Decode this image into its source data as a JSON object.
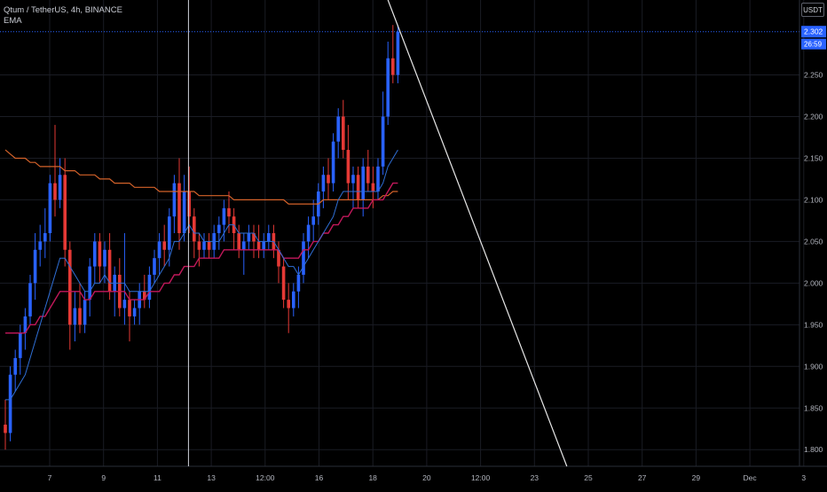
{
  "legend": {
    "symbol_line": "Qtum / TetherUS, 4h, BINANCE",
    "indicator": "EMA"
  },
  "currency_label": "USDT",
  "price_scale": {
    "ticks": [
      "2.250",
      "2.200",
      "2.150",
      "2.100",
      "2.050",
      "2.000",
      "1.950",
      "1.900",
      "1.850",
      "1.800"
    ],
    "current_price": "2.302",
    "countdown": "26:59"
  },
  "time_axis": {
    "labels": [
      "7",
      "9",
      "11",
      "13",
      "12:00",
      "16",
      "18",
      "20",
      "12:00",
      "23",
      "25",
      "27",
      "29",
      "Dec",
      "3"
    ]
  },
  "colors": {
    "background": "#000000",
    "grid": "#1a1c24",
    "up": "#2962ff",
    "down": "#e53935",
    "ema_fast": "#2f6fd6",
    "ema_mid": "#c2185b",
    "ema_slow": "#d4622a",
    "price_badge": "#2962ff",
    "drawn_line": "#e8e8e8"
  },
  "chart_data": {
    "type": "candlestick",
    "ylim": [
      1.78,
      2.34
    ],
    "y_ticks": [
      1.8,
      1.85,
      1.9,
      1.95,
      2.0,
      2.05,
      2.1,
      2.15,
      2.2,
      2.25
    ],
    "candles": [
      [
        1.83,
        1.86,
        1.8,
        1.82
      ],
      [
        1.82,
        1.9,
        1.81,
        1.89
      ],
      [
        1.89,
        1.92,
        1.87,
        1.91
      ],
      [
        1.91,
        1.95,
        1.89,
        1.94
      ],
      [
        1.94,
        1.97,
        1.92,
        1.96
      ],
      [
        1.96,
        2.01,
        1.95,
        2.0
      ],
      [
        2.0,
        2.06,
        1.98,
        2.04
      ],
      [
        2.04,
        2.07,
        2.02,
        2.05
      ],
      [
        2.05,
        2.09,
        2.03,
        2.06
      ],
      [
        2.06,
        2.13,
        2.05,
        2.12
      ],
      [
        2.12,
        2.19,
        2.08,
        2.1
      ],
      [
        2.1,
        2.15,
        2.09,
        2.13
      ],
      [
        2.13,
        2.15,
        2.02,
        2.04
      ],
      [
        2.04,
        2.05,
        1.92,
        1.95
      ],
      [
        1.95,
        1.99,
        1.93,
        1.97
      ],
      [
        1.97,
        2.0,
        1.94,
        1.95
      ],
      [
        1.95,
        1.99,
        1.94,
        1.98
      ],
      [
        1.98,
        2.03,
        1.96,
        2.02
      ],
      [
        2.02,
        2.06,
        2.0,
        2.05
      ],
      [
        2.05,
        2.06,
        2.0,
        2.02
      ],
      [
        2.02,
        2.05,
        2.0,
        2.04
      ],
      [
        2.04,
        2.06,
        1.98,
        1.99
      ],
      [
        1.99,
        2.02,
        1.96,
        2.01
      ],
      [
        2.01,
        2.03,
        1.96,
        1.97
      ],
      [
        1.97,
        2.06,
        1.95,
        1.98
      ],
      [
        1.98,
        1.99,
        1.93,
        1.96
      ],
      [
        1.96,
        1.98,
        1.95,
        1.97
      ],
      [
        1.97,
        2.0,
        1.95,
        1.99
      ],
      [
        1.99,
        2.01,
        1.97,
        1.98
      ],
      [
        1.98,
        2.02,
        1.97,
        2.01
      ],
      [
        2.01,
        2.04,
        2.0,
        2.03
      ],
      [
        2.03,
        2.06,
        2.01,
        2.05
      ],
      [
        2.05,
        2.07,
        2.02,
        2.04
      ],
      [
        2.04,
        2.09,
        2.02,
        2.08
      ],
      [
        2.08,
        2.13,
        2.06,
        2.12
      ],
      [
        2.12,
        2.15,
        2.04,
        2.06
      ],
      [
        2.06,
        2.13,
        2.05,
        2.11
      ],
      [
        2.11,
        2.14,
        2.06,
        2.08
      ],
      [
        2.08,
        2.09,
        2.03,
        2.05
      ],
      [
        2.05,
        2.06,
        2.02,
        2.04
      ],
      [
        2.04,
        2.06,
        2.03,
        2.05
      ],
      [
        2.05,
        2.06,
        2.03,
        2.04
      ],
      [
        2.04,
        2.07,
        2.03,
        2.06
      ],
      [
        2.06,
        2.08,
        2.04,
        2.07
      ],
      [
        2.07,
        2.1,
        2.05,
        2.09
      ],
      [
        2.09,
        2.11,
        2.06,
        2.08
      ],
      [
        2.08,
        2.09,
        2.04,
        2.06
      ],
      [
        2.06,
        2.07,
        2.03,
        2.04
      ],
      [
        2.04,
        2.06,
        2.01,
        2.05
      ],
      [
        2.05,
        2.07,
        2.04,
        2.06
      ],
      [
        2.06,
        2.07,
        2.03,
        2.05
      ],
      [
        2.05,
        2.07,
        2.03,
        2.04
      ],
      [
        2.04,
        2.06,
        2.03,
        2.05
      ],
      [
        2.05,
        2.07,
        2.04,
        2.06
      ],
      [
        2.06,
        2.07,
        2.03,
        2.04
      ],
      [
        2.04,
        2.05,
        2.0,
        2.02
      ],
      [
        2.02,
        2.03,
        1.97,
        1.98
      ],
      [
        1.98,
        2.0,
        1.94,
        1.97
      ],
      [
        1.97,
        2.0,
        1.96,
        1.99
      ],
      [
        1.99,
        2.02,
        1.97,
        2.01
      ],
      [
        2.01,
        2.06,
        2.0,
        2.05
      ],
      [
        2.05,
        2.08,
        2.03,
        2.07
      ],
      [
        2.07,
        2.1,
        2.05,
        2.08
      ],
      [
        2.08,
        2.12,
        2.07,
        2.11
      ],
      [
        2.11,
        2.14,
        2.09,
        2.13
      ],
      [
        2.13,
        2.15,
        2.1,
        2.12
      ],
      [
        2.12,
        2.18,
        2.11,
        2.17
      ],
      [
        2.17,
        2.21,
        2.15,
        2.2
      ],
      [
        2.2,
        2.22,
        2.15,
        2.16
      ],
      [
        2.16,
        2.19,
        2.1,
        2.12
      ],
      [
        2.12,
        2.14,
        2.09,
        2.13
      ],
      [
        2.13,
        2.14,
        2.09,
        2.1
      ],
      [
        2.1,
        2.15,
        2.08,
        2.14
      ],
      [
        2.14,
        2.16,
        2.11,
        2.12
      ],
      [
        2.12,
        2.14,
        2.09,
        2.11
      ],
      [
        2.11,
        2.15,
        2.1,
        2.14
      ],
      [
        2.14,
        2.23,
        2.13,
        2.2
      ],
      [
        2.2,
        2.29,
        2.19,
        2.27
      ],
      [
        2.27,
        2.31,
        2.24,
        2.25
      ],
      [
        2.25,
        2.31,
        2.24,
        2.302
      ]
    ],
    "ema_fast": [
      1.86,
      1.86,
      1.87,
      1.88,
      1.89,
      1.91,
      1.93,
      1.95,
      1.97,
      1.99,
      2.01,
      2.03,
      2.03,
      2.02,
      2.01,
      2.0,
      1.99,
      1.99,
      2.0,
      2.0,
      2.01,
      2.0,
      2.0,
      2.0,
      2.0,
      1.99,
      1.99,
      1.99,
      1.99,
      1.99,
      2.0,
      2.01,
      2.02,
      2.03,
      2.05,
      2.05,
      2.06,
      2.07,
      2.06,
      2.06,
      2.05,
      2.05,
      2.05,
      2.05,
      2.06,
      2.07,
      2.07,
      2.06,
      2.06,
      2.06,
      2.06,
      2.05,
      2.05,
      2.05,
      2.05,
      2.04,
      2.03,
      2.02,
      2.02,
      2.01,
      2.02,
      2.03,
      2.04,
      2.05,
      2.06,
      2.07,
      2.08,
      2.1,
      2.11,
      2.11,
      2.11,
      2.11,
      2.11,
      2.11,
      2.11,
      2.11,
      2.12,
      2.14,
      2.15,
      2.16
    ],
    "ema_mid": [
      1.94,
      1.94,
      1.94,
      1.94,
      1.94,
      1.95,
      1.95,
      1.96,
      1.96,
      1.97,
      1.98,
      1.99,
      1.99,
      1.99,
      1.99,
      1.99,
      1.98,
      1.98,
      1.99,
      1.99,
      1.99,
      1.99,
      1.99,
      1.99,
      1.99,
      1.98,
      1.98,
      1.98,
      1.98,
      1.99,
      1.99,
      1.99,
      2.0,
      2.0,
      2.01,
      2.01,
      2.02,
      2.02,
      2.02,
      2.03,
      2.03,
      2.03,
      2.03,
      2.03,
      2.04,
      2.04,
      2.04,
      2.04,
      2.04,
      2.04,
      2.04,
      2.04,
      2.04,
      2.04,
      2.04,
      2.04,
      2.03,
      2.03,
      2.03,
      2.03,
      2.04,
      2.04,
      2.05,
      2.05,
      2.06,
      2.06,
      2.07,
      2.07,
      2.08,
      2.08,
      2.09,
      2.09,
      2.09,
      2.09,
      2.1,
      2.1,
      2.1,
      2.11,
      2.12,
      2.12
    ],
    "ema_slow": [
      2.16,
      2.155,
      2.15,
      2.15,
      2.15,
      2.145,
      2.145,
      2.14,
      2.14,
      2.14,
      2.14,
      2.14,
      2.135,
      2.135,
      2.135,
      2.13,
      2.13,
      2.13,
      2.13,
      2.125,
      2.125,
      2.125,
      2.12,
      2.12,
      2.12,
      2.12,
      2.115,
      2.115,
      2.115,
      2.115,
      2.115,
      2.11,
      2.11,
      2.11,
      2.11,
      2.11,
      2.11,
      2.11,
      2.11,
      2.105,
      2.105,
      2.105,
      2.105,
      2.105,
      2.105,
      2.105,
      2.1,
      2.1,
      2.1,
      2.1,
      2.1,
      2.1,
      2.1,
      2.1,
      2.1,
      2.1,
      2.1,
      2.095,
      2.095,
      2.095,
      2.095,
      2.095,
      2.095,
      2.095,
      2.1,
      2.1,
      2.1,
      2.1,
      2.1,
      2.1,
      2.1,
      2.1,
      2.1,
      2.1,
      2.1,
      2.1,
      2.105,
      2.105,
      2.11,
      2.11
    ],
    "trendline": {
      "start": [
        77,
        2.34
      ],
      "end": [
        113,
        1.78
      ]
    },
    "vertical_marker_index": 34
  }
}
